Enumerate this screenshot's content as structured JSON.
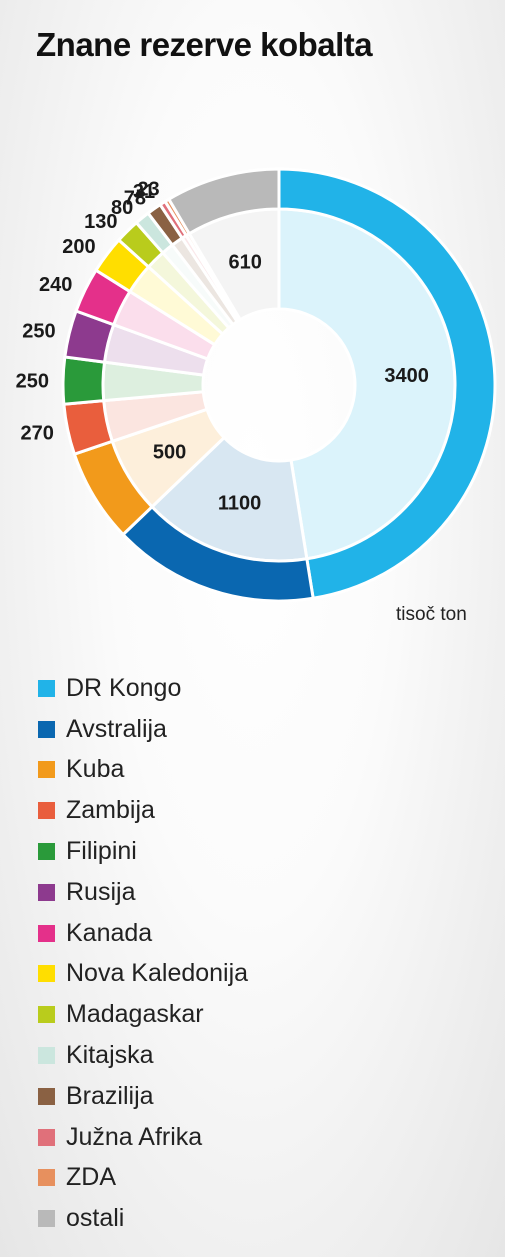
{
  "title": "Znane rezerve kobalta",
  "unit_label": "tisoč ton",
  "chart_data": {
    "type": "pie",
    "style": "donut",
    "title": "Znane rezerve kobalta",
    "unit": "tisoč ton",
    "legend_position": "bottom",
    "categories": [
      "DR Kongo",
      "Avstralija",
      "Kuba",
      "Zambija",
      "Filipini",
      "Rusija",
      "Kanada",
      "Nova Kaledonija",
      "Madagaskar",
      "Kitajska",
      "Brazilija",
      "Južna Afrika",
      "ZDA",
      "ostali"
    ],
    "values": [
      3400,
      1100,
      500,
      270,
      250,
      250,
      240,
      200,
      130,
      80,
      78,
      31,
      23,
      610
    ],
    "data_labels": [
      "3400",
      "1100",
      "500",
      "270",
      "250",
      "250",
      "240",
      "200",
      "130",
      "80",
      "78",
      "31",
      "23",
      "610"
    ],
    "colors": [
      "#21b3e8",
      "#0a67b0",
      "#f29a1b",
      "#e95e3d",
      "#2a9a3a",
      "#8d3a8e",
      "#e4308a",
      "#ffde00",
      "#b9cc1c",
      "#cbe6de",
      "#8a6143",
      "#e0707a",
      "#e7905e",
      "#b9b9b9"
    ]
  }
}
